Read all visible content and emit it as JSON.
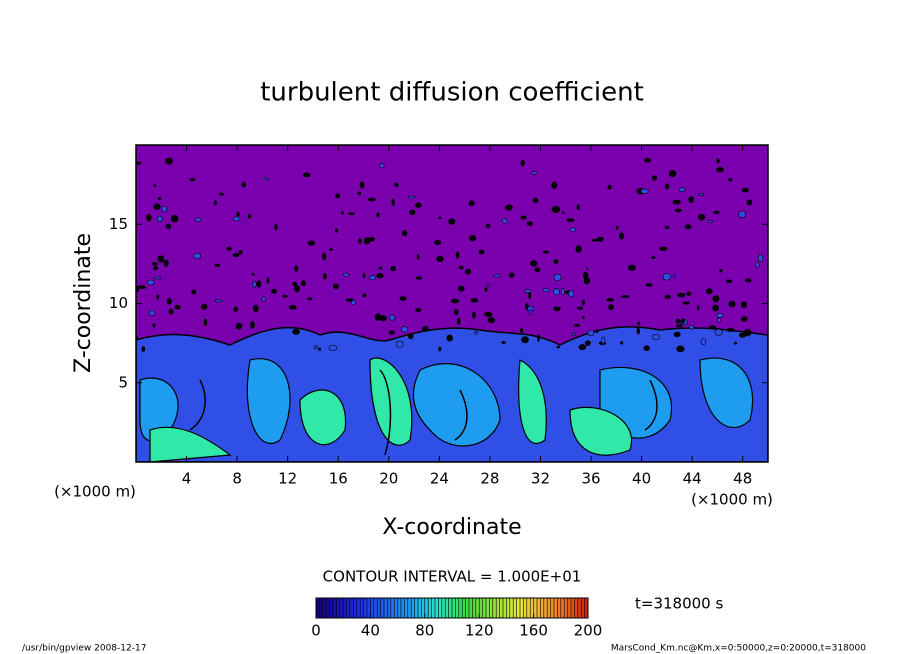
{
  "chart_data": {
    "type": "contour",
    "title": "turbulent diffusion coefficient",
    "xlabel": "X-coordinate",
    "ylabel": "Z-coordinate",
    "x_unit": "(×1000 m)",
    "xlim": [
      0,
      50
    ],
    "xticks": [
      4,
      8,
      12,
      16,
      20,
      24,
      28,
      32,
      36,
      40,
      44,
      48
    ],
    "ylim": [
      0,
      20
    ],
    "yticks": [
      5,
      10,
      15
    ],
    "contour_interval": "CONTOUR INTERVAL = 1.000E+01",
    "colorbar_lim": [
      0,
      200
    ],
    "colorbar_ticks": [
      0,
      40,
      80,
      120,
      160,
      200
    ],
    "time_label": "t=318000 s",
    "footer_left": "/usr/bin/gpview   2008-12-17",
    "footer_right": "MarsCond_Km.nc@Km,x=0:50000,z=0:20000,t=318000"
  }
}
